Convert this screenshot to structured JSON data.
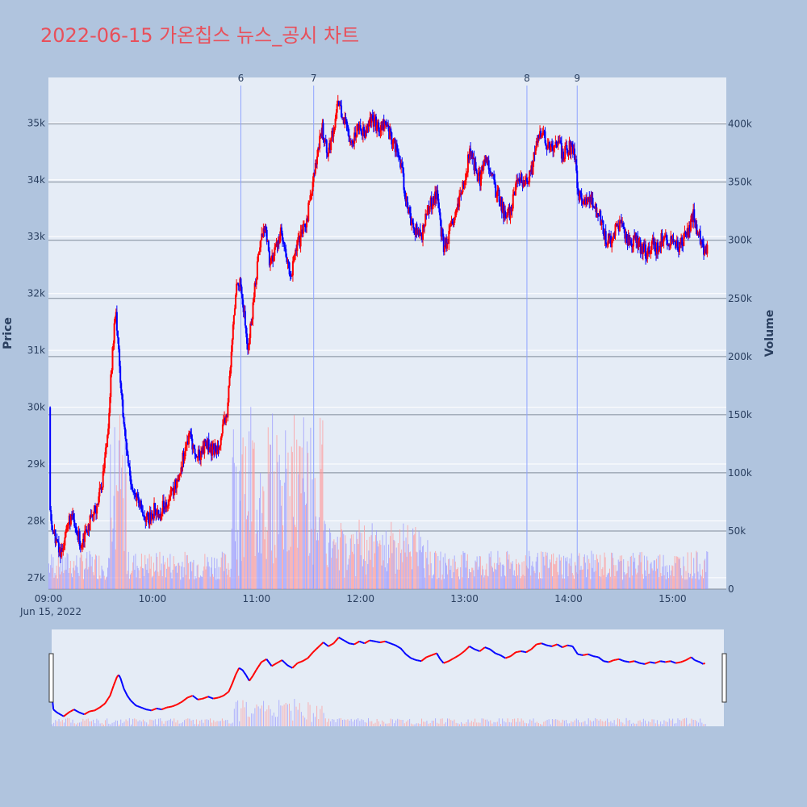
{
  "chart_data": {
    "type": "candlestick",
    "title": "2022-06-15 가온칩스 뉴스_공시 차트",
    "ylabel_left": "Price",
    "ylabel_right": "Volume",
    "date_label": "Jun 15, 2022",
    "colors": {
      "up": "#ff0000",
      "down": "#0000ff",
      "plot_bg": "#e5ecf6",
      "page_bg": "#b0c4de",
      "title": "#e8505b",
      "event_line": "#8fa3ff"
    },
    "x_range_minutes": [
      540,
      931
    ],
    "price_range": [
      26800,
      35800
    ],
    "volume_range": [
      0,
      440000
    ],
    "x_ticks": [
      {
        "label": "09:00",
        "minute": 540
      },
      {
        "label": "10:00",
        "minute": 600
      },
      {
        "label": "11:00",
        "minute": 660
      },
      {
        "label": "12:00",
        "minute": 720
      },
      {
        "label": "13:00",
        "minute": 780
      },
      {
        "label": "14:00",
        "minute": 840
      },
      {
        "label": "15:00",
        "minute": 900
      }
    ],
    "price_ticks": [
      {
        "label": "27k",
        "value": 27000
      },
      {
        "label": "28k",
        "value": 28000
      },
      {
        "label": "29k",
        "value": 29000
      },
      {
        "label": "30k",
        "value": 30000
      },
      {
        "label": "31k",
        "value": 31000
      },
      {
        "label": "32k",
        "value": 32000
      },
      {
        "label": "33k",
        "value": 33000
      },
      {
        "label": "34k",
        "value": 34000
      },
      {
        "label": "35k",
        "value": 35000
      }
    ],
    "volume_ticks": [
      {
        "label": "0",
        "value": 0
      },
      {
        "label": "50k",
        "value": 50000
      },
      {
        "label": "100k",
        "value": 100000
      },
      {
        "label": "150k",
        "value": 150000
      },
      {
        "label": "200k",
        "value": 200000
      },
      {
        "label": "250k",
        "value": 250000
      },
      {
        "label": "300k",
        "value": 300000
      },
      {
        "label": "350k",
        "value": 350000
      },
      {
        "label": "400k",
        "value": 400000
      }
    ],
    "events": [
      {
        "label": "6",
        "minute": 651
      },
      {
        "label": "7",
        "minute": 693
      },
      {
        "label": "8",
        "minute": 816
      },
      {
        "label": "9",
        "minute": 845
      }
    ],
    "price_path": [
      [
        540,
        30000
      ],
      [
        541,
        28100
      ],
      [
        543,
        27800
      ],
      [
        545,
        27600
      ],
      [
        547,
        27400
      ],
      [
        550,
        27800
      ],
      [
        553,
        28100
      ],
      [
        556,
        27800
      ],
      [
        559,
        27600
      ],
      [
        562,
        27900
      ],
      [
        565,
        28000
      ],
      [
        568,
        28300
      ],
      [
        571,
        28700
      ],
      [
        574,
        29500
      ],
      [
        576,
        30500
      ],
      [
        578,
        31400
      ],
      [
        579,
        31600
      ],
      [
        580,
        31300
      ],
      [
        582,
        30200
      ],
      [
        584,
        29500
      ],
      [
        586,
        29000
      ],
      [
        589,
        28500
      ],
      [
        592,
        28300
      ],
      [
        595,
        28100
      ],
      [
        598,
        28000
      ],
      [
        601,
        28200
      ],
      [
        604,
        28100
      ],
      [
        607,
        28300
      ],
      [
        610,
        28400
      ],
      [
        613,
        28600
      ],
      [
        616,
        28900
      ],
      [
        619,
        29300
      ],
      [
        622,
        29500
      ],
      [
        625,
        29100
      ],
      [
        628,
        29200
      ],
      [
        631,
        29400
      ],
      [
        634,
        29200
      ],
      [
        637,
        29300
      ],
      [
        640,
        29500
      ],
      [
        643,
        29900
      ],
      [
        645,
        30700
      ],
      [
        647,
        31600
      ],
      [
        649,
        32300
      ],
      [
        651,
        32100
      ],
      [
        653,
        31600
      ],
      [
        655,
        31000
      ],
      [
        657,
        31500
      ],
      [
        659,
        32100
      ],
      [
        662,
        32900
      ],
      [
        665,
        33200
      ],
      [
        668,
        32500
      ],
      [
        671,
        32800
      ],
      [
        674,
        33100
      ],
      [
        677,
        32600
      ],
      [
        680,
        32300
      ],
      [
        683,
        32800
      ],
      [
        686,
        33000
      ],
      [
        689,
        33300
      ],
      [
        692,
        33900
      ],
      [
        695,
        34400
      ],
      [
        698,
        34900
      ],
      [
        701,
        34500
      ],
      [
        704,
        34800
      ],
      [
        707,
        35400
      ],
      [
        710,
        35100
      ],
      [
        713,
        34800
      ],
      [
        716,
        34700
      ],
      [
        719,
        35000
      ],
      [
        722,
        34800
      ],
      [
        725,
        35100
      ],
      [
        728,
        35000
      ],
      [
        731,
        34900
      ],
      [
        734,
        35000
      ],
      [
        737,
        34800
      ],
      [
        740,
        34600
      ],
      [
        743,
        34300
      ],
      [
        746,
        33700
      ],
      [
        749,
        33300
      ],
      [
        752,
        33100
      ],
      [
        755,
        33000
      ],
      [
        758,
        33400
      ],
      [
        761,
        33600
      ],
      [
        764,
        33800
      ],
      [
        766,
        33200
      ],
      [
        768,
        32800
      ],
      [
        771,
        33000
      ],
      [
        774,
        33300
      ],
      [
        777,
        33600
      ],
      [
        780,
        34000
      ],
      [
        783,
        34500
      ],
      [
        786,
        34200
      ],
      [
        789,
        34000
      ],
      [
        792,
        34400
      ],
      [
        795,
        34200
      ],
      [
        798,
        33800
      ],
      [
        801,
        33600
      ],
      [
        804,
        33300
      ],
      [
        807,
        33500
      ],
      [
        810,
        33900
      ],
      [
        813,
        34000
      ],
      [
        816,
        33900
      ],
      [
        819,
        34200
      ],
      [
        822,
        34700
      ],
      [
        825,
        34800
      ],
      [
        828,
        34600
      ],
      [
        831,
        34500
      ],
      [
        834,
        34700
      ],
      [
        837,
        34400
      ],
      [
        840,
        34600
      ],
      [
        843,
        34500
      ],
      [
        846,
        33700
      ],
      [
        849,
        33600
      ],
      [
        852,
        33700
      ],
      [
        855,
        33500
      ],
      [
        858,
        33400
      ],
      [
        861,
        33000
      ],
      [
        864,
        32900
      ],
      [
        867,
        33100
      ],
      [
        870,
        33200
      ],
      [
        873,
        33000
      ],
      [
        876,
        32900
      ],
      [
        879,
        33000
      ],
      [
        882,
        32800
      ],
      [
        885,
        32700
      ],
      [
        888,
        32900
      ],
      [
        891,
        32800
      ],
      [
        894,
        33000
      ],
      [
        897,
        32900
      ],
      [
        900,
        33000
      ],
      [
        903,
        32800
      ],
      [
        906,
        32900
      ],
      [
        909,
        33100
      ],
      [
        912,
        33400
      ],
      [
        914,
        33100
      ],
      [
        917,
        32900
      ],
      [
        919,
        32700
      ],
      [
        920,
        32800
      ]
    ]
  }
}
